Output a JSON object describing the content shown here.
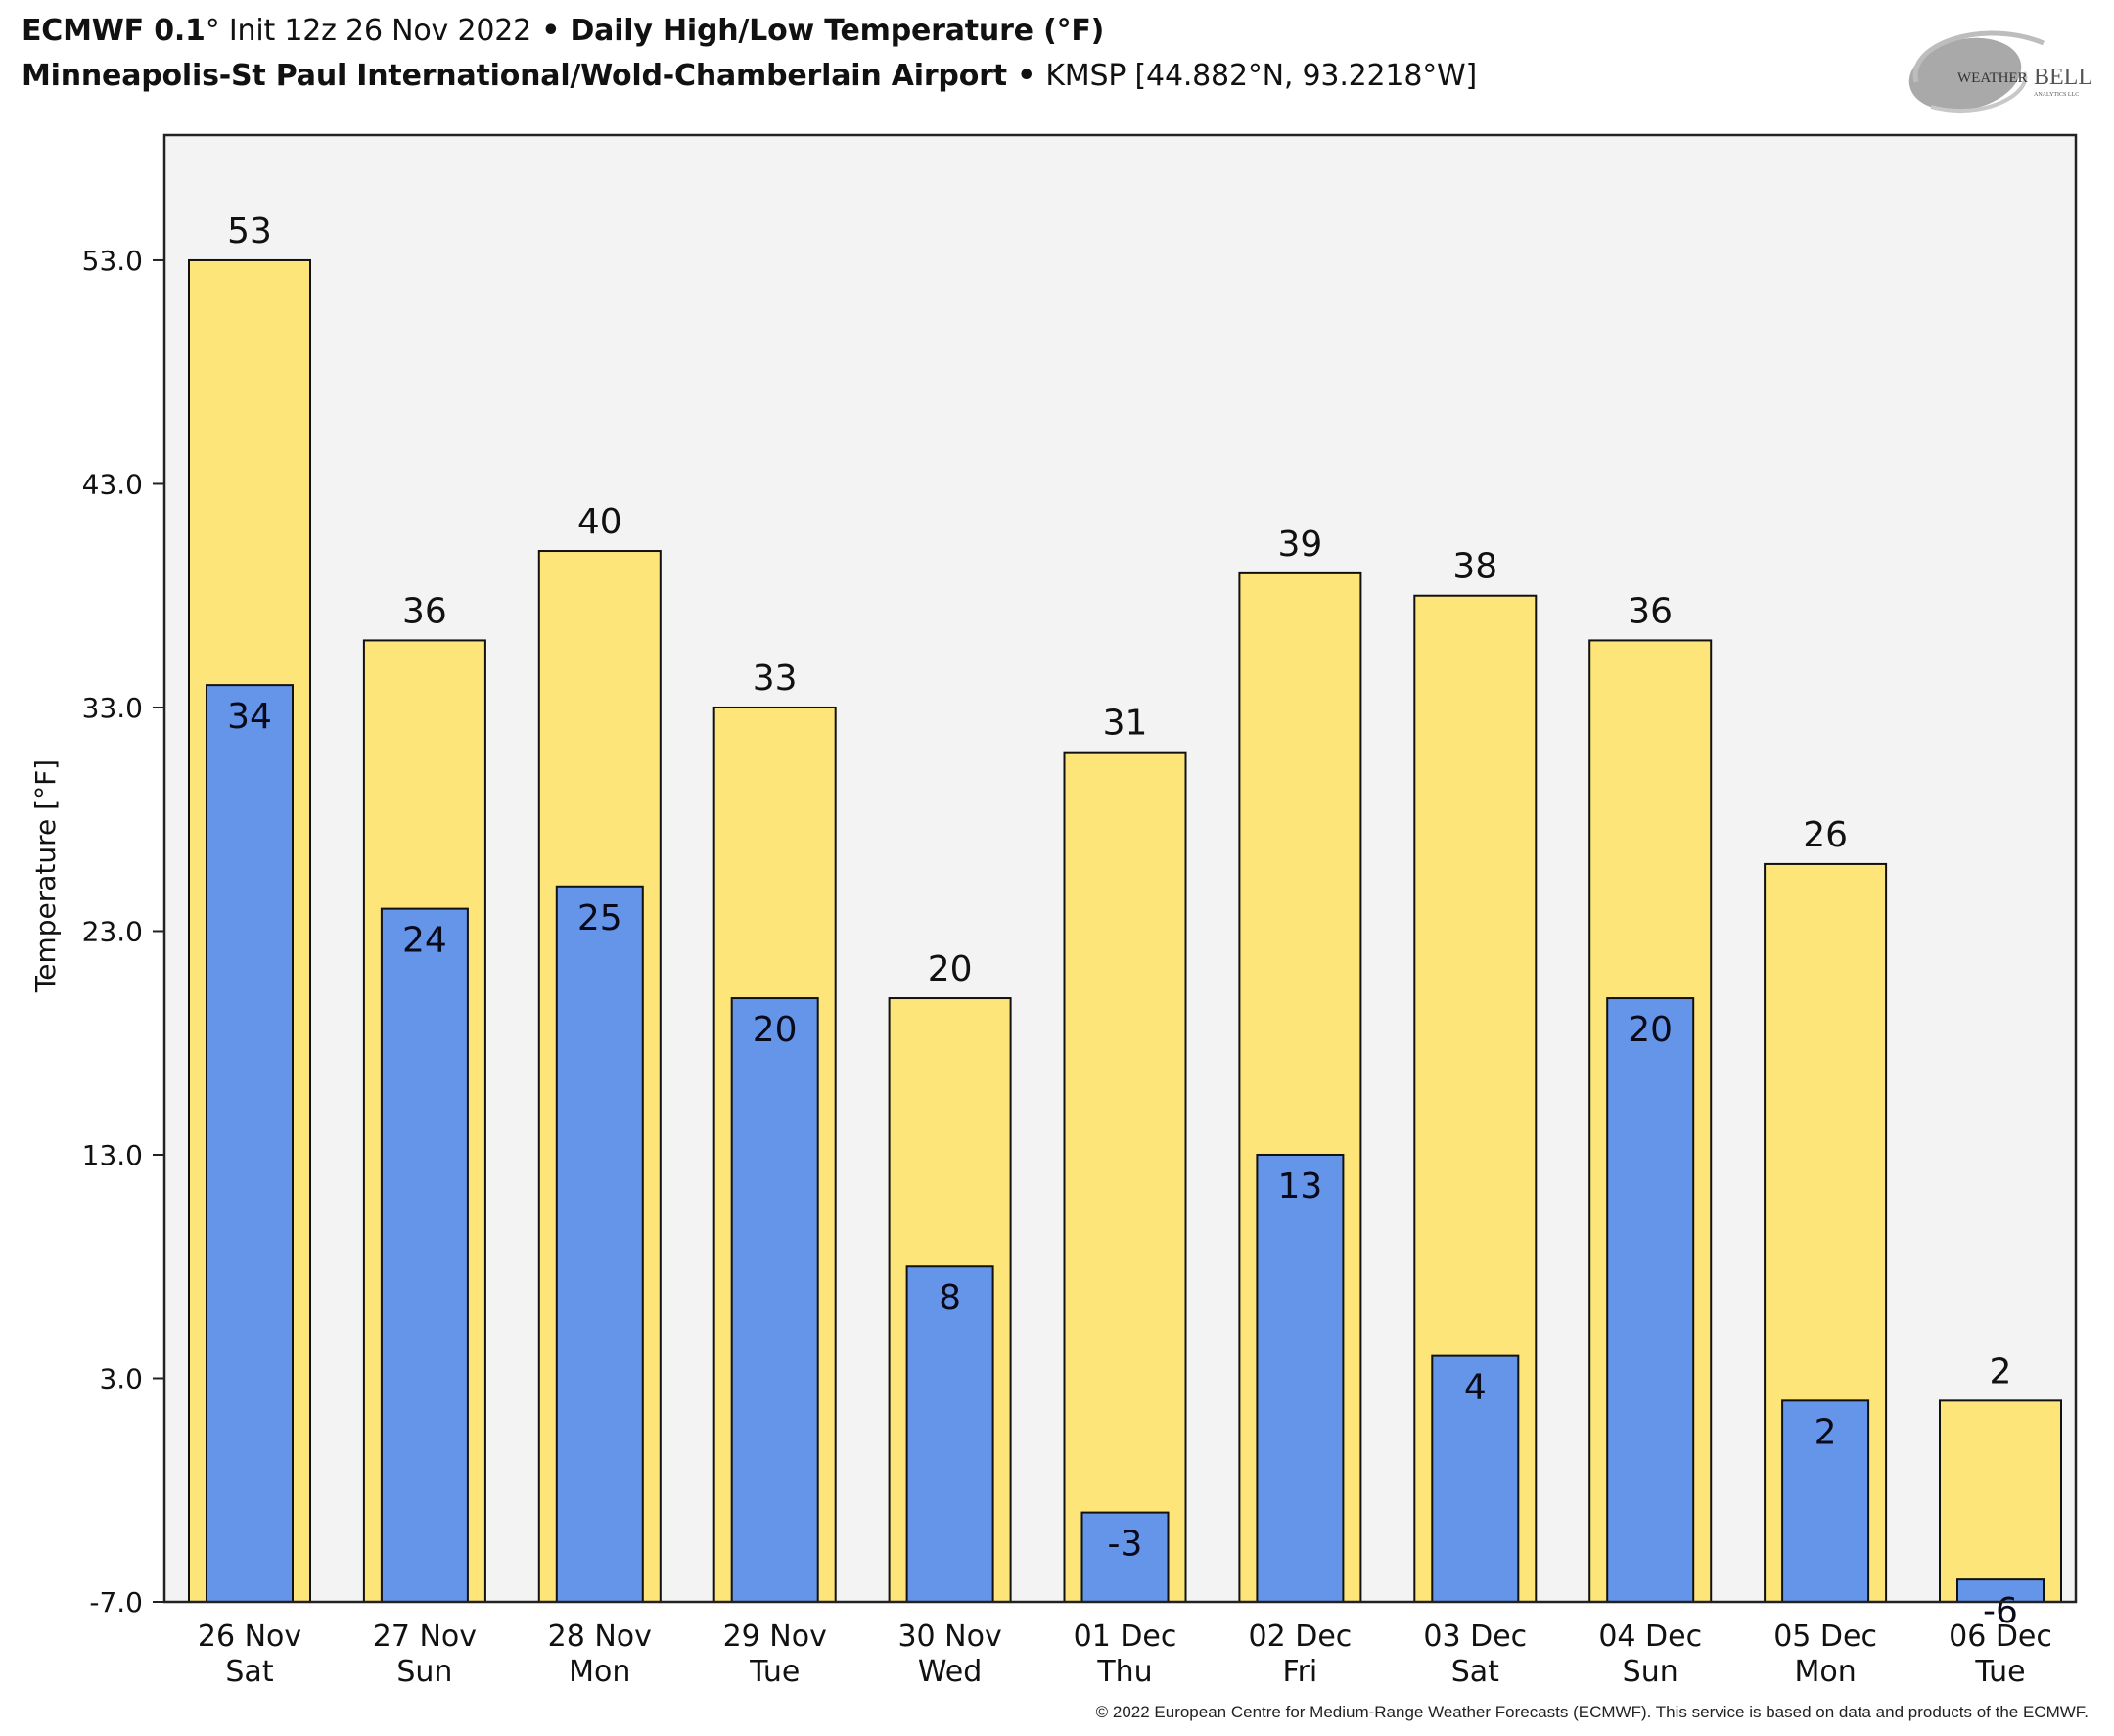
{
  "header": {
    "model": "ECMWF 0.1",
    "degree_symbol": "°",
    "init": " Init 12z 26 Nov 2022",
    "separator": " • ",
    "product": "Daily High/Low Temperature (°F)",
    "station_name": "Minneapolis-St Paul International/Wold-Chamberlain Airport",
    "station_info": "KMSP [44.882°N, 93.2218°W]"
  },
  "logo": {
    "text_main": "WEATHER",
    "text_bell": "BELL",
    "text_sub": "ANALYTICS LLC"
  },
  "footer": "© 2022 European Centre for Medium-Range Weather Forecasts (ECMWF). This service is based on data and products of the ECMWF.",
  "colors": {
    "high": "#FDE57A",
    "low": "#6495E9",
    "plot_bg": "#F3F3F3",
    "outline": "#111111"
  },
  "chart_data": {
    "type": "bar",
    "title": "Daily High/Low Temperature (°F)",
    "xlabel": "",
    "ylabel": "Temperature [°F]",
    "ylim": [
      -7,
      58.6
    ],
    "yticks": [
      -7.0,
      3.0,
      13.0,
      23.0,
      33.0,
      43.0,
      53.0
    ],
    "ytick_labels": [
      "-7.0",
      "3.0",
      "13.0",
      "23.0",
      "33.0",
      "43.0",
      "53.0"
    ],
    "grid": false,
    "legend": "none",
    "categories": [
      [
        "26 Nov",
        "Sat"
      ],
      [
        "27 Nov",
        "Sun"
      ],
      [
        "28 Nov",
        "Mon"
      ],
      [
        "29 Nov",
        "Tue"
      ],
      [
        "30 Nov",
        "Wed"
      ],
      [
        "01 Dec",
        "Thu"
      ],
      [
        "02 Dec",
        "Fri"
      ],
      [
        "03 Dec",
        "Sat"
      ],
      [
        "04 Dec",
        "Sun"
      ],
      [
        "05 Dec",
        "Mon"
      ],
      [
        "06 Dec",
        "Tue"
      ]
    ],
    "series": [
      {
        "name": "High",
        "values": [
          53,
          36,
          40,
          33,
          20,
          31,
          39,
          38,
          36,
          26,
          2
        ]
      },
      {
        "name": "Low",
        "values": [
          34,
          24,
          25,
          20,
          8,
          -3,
          13,
          4,
          20,
          2,
          -6
        ]
      }
    ]
  }
}
